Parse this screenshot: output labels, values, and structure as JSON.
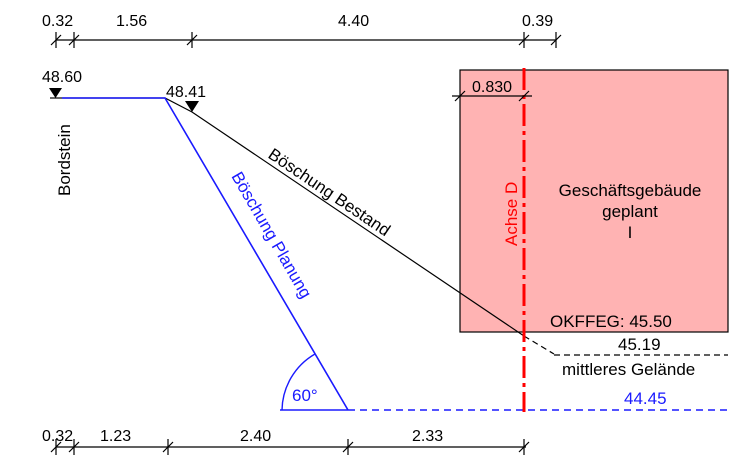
{
  "colors": {
    "building_fill": "#ffb3b3",
    "axis_red": "#ff0000",
    "planning_blue": "#1a1aff",
    "line_black": "#000000"
  },
  "top_dimensions": [
    "0.32",
    "1.56",
    "4.40",
    "0.39"
  ],
  "bottom_dimensions": [
    "0.32",
    "1.23",
    "2.40",
    "2.33"
  ],
  "levels": {
    "curb": "48.60",
    "slope_top": "48.41",
    "okffeg": "OKFFEG: 45.50",
    "mean_terrain": "45.19",
    "bottom": "44.45"
  },
  "labels": {
    "curb": "Bordstein",
    "existing_slope": "Böschung Bestand",
    "planned_slope": "Böschung Planung",
    "axis": "Achse D",
    "building_line1": "Geschäftsgebäude",
    "building_line2": "geplant",
    "building_line3": "I",
    "building_offset": "0.830",
    "mean_terrain": "mittleres Gelände",
    "angle": "60°"
  }
}
